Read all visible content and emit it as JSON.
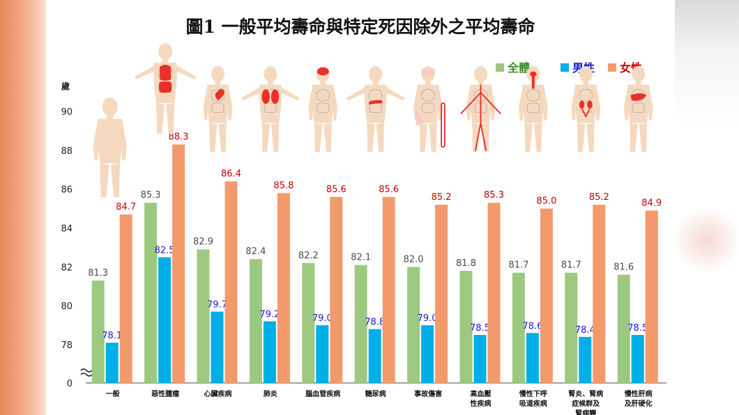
{
  "chart_data": {
    "type": "bar",
    "title": "圖1 一般平均壽命與特定死因除外之平均壽命",
    "ylabel": "歲",
    "yticks": [
      78,
      80,
      82,
      84,
      86,
      88,
      90
    ],
    "ybase_label": "0",
    "axis_break": true,
    "ylim": [
      76.5,
      90
    ],
    "categories": [
      [
        "一般"
      ],
      [
        "惡性腫瘤"
      ],
      [
        "心臟疾病"
      ],
      [
        "肺炎"
      ],
      [
        "腦血管疾病"
      ],
      [
        "糖尿病"
      ],
      [
        "事故傷害"
      ],
      [
        "高血壓",
        "性疾病"
      ],
      [
        "慢性下呼",
        "吸道疾病"
      ],
      [
        "腎炎、腎病",
        "症候群及",
        "腎病變"
      ],
      [
        "慢性肝病",
        "及肝硬化"
      ]
    ],
    "series": [
      {
        "name": "全體",
        "color": "#9cc97f",
        "values": [
          81.3,
          85.3,
          82.9,
          82.4,
          82.2,
          82.1,
          82.0,
          81.8,
          81.7,
          81.7,
          81.6
        ]
      },
      {
        "name": "男性",
        "color": "#00aee8",
        "values": [
          78.1,
          82.5,
          79.7,
          79.2,
          79.0,
          78.8,
          79.0,
          78.5,
          78.6,
          78.4,
          78.5
        ]
      },
      {
        "name": "女性",
        "color": "#f39a6d",
        "values": [
          84.7,
          88.3,
          86.4,
          85.8,
          85.6,
          85.6,
          85.2,
          85.3,
          85.0,
          85.2,
          84.9
        ]
      }
    ],
    "label_colors": {
      "全體": "#4a4a4a",
      "男性": "#1a1acc",
      "女性": "#c00000"
    },
    "legend_text_colors": {
      "全體": "#3a8c2a",
      "男性": "#1a1acc",
      "女性": "#cc0000"
    },
    "legend_position": "top-right",
    "grid": false
  },
  "illustrations": {
    "body_color": "#f5d9bf",
    "organ_color": "#e8302a",
    "organ_outline": "#b5b5b5",
    "figures": [
      "body",
      "tumor",
      "heart",
      "lungs",
      "brain",
      "pancreas",
      "injury",
      "vessels",
      "airway",
      "kidneys",
      "liver"
    ]
  }
}
